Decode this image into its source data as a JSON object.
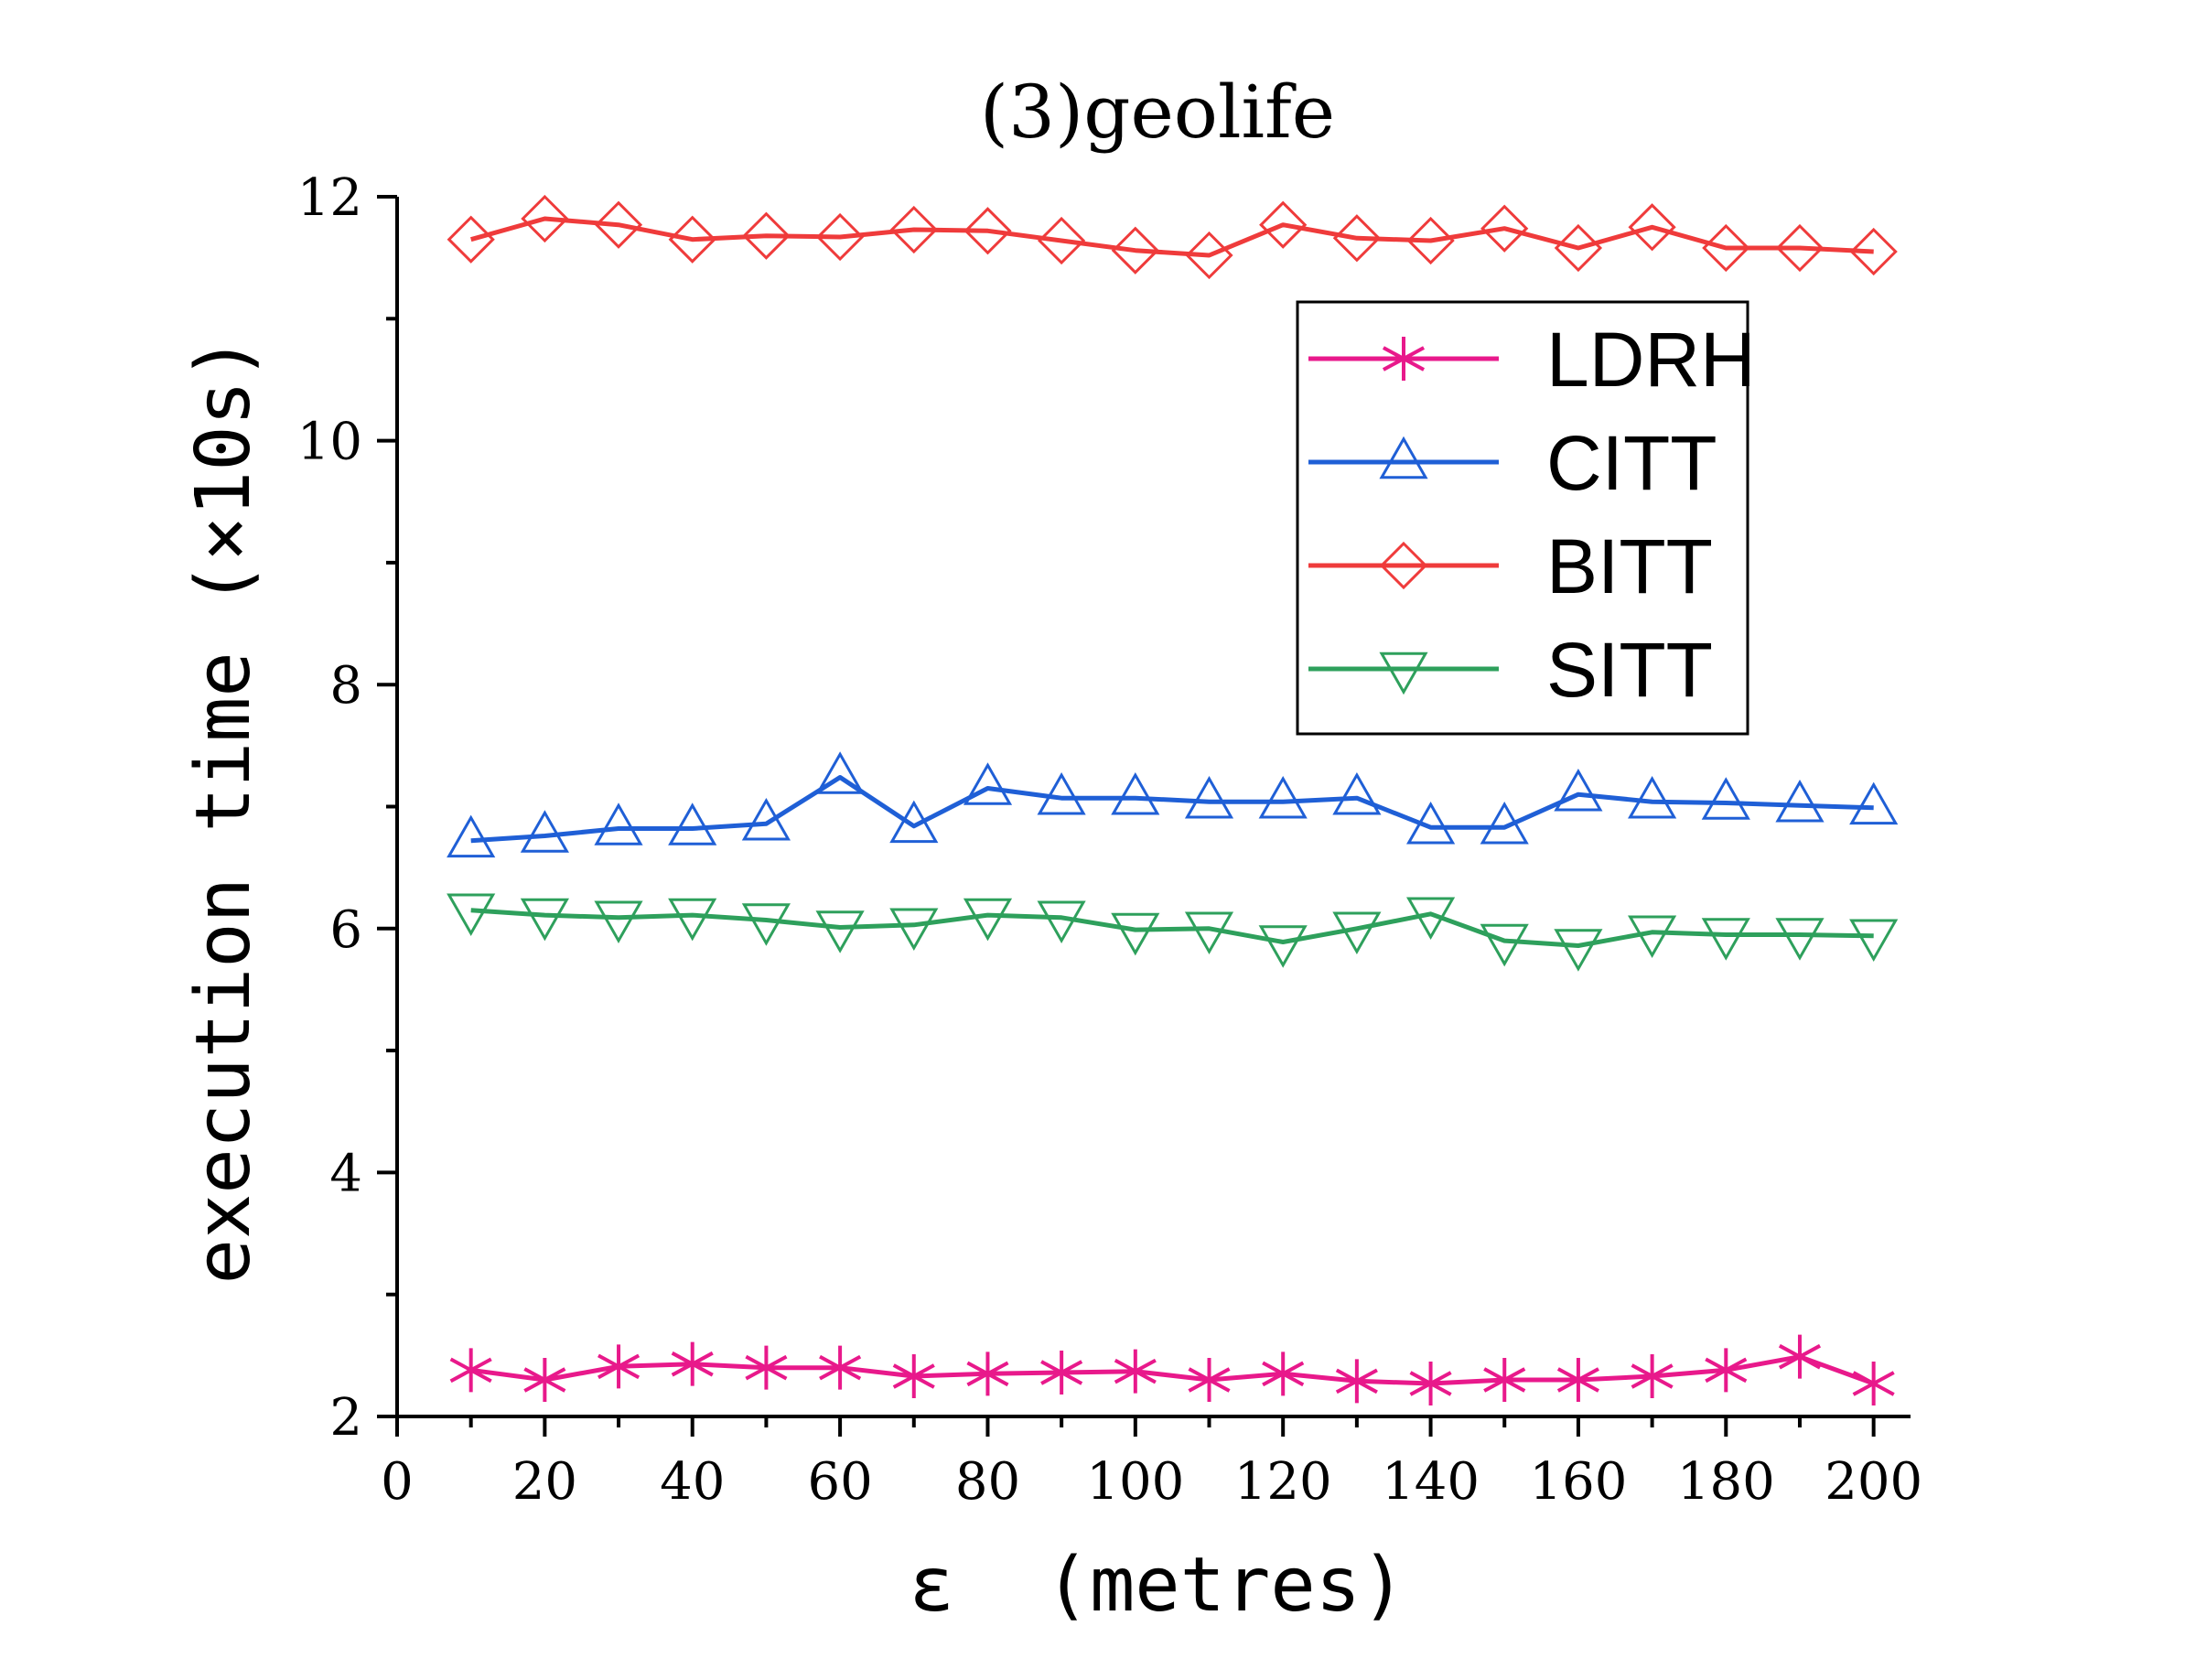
{
  "chart_data": {
    "type": "line",
    "title": "(3)geolife",
    "xlabel": "ε  (metres)",
    "ylabel": "execution time (×10s)",
    "xlim": [
      0,
      205
    ],
    "ylim": [
      2,
      12
    ],
    "xticks": [
      0,
      20,
      40,
      60,
      80,
      100,
      120,
      140,
      160,
      180,
      200
    ],
    "yticks": [
      2,
      4,
      6,
      8,
      10,
      12
    ],
    "grid": false,
    "legend_position": "top-right",
    "x": [
      10,
      20,
      30,
      40,
      50,
      60,
      70,
      80,
      90,
      100,
      110,
      120,
      130,
      140,
      150,
      160,
      170,
      180,
      190,
      200
    ],
    "series": [
      {
        "name": "LDRH",
        "color": "#E8198B",
        "marker": "star",
        "values": [
          2.38,
          2.3,
          2.41,
          2.43,
          2.4,
          2.4,
          2.33,
          2.35,
          2.36,
          2.37,
          2.3,
          2.35,
          2.29,
          2.27,
          2.3,
          2.3,
          2.33,
          2.38,
          2.49,
          2.27
        ]
      },
      {
        "name": "CITT",
        "color": "#1F5FD6",
        "marker": "triangle-up",
        "values": [
          6.72,
          6.76,
          6.82,
          6.82,
          6.86,
          7.24,
          6.84,
          7.15,
          7.07,
          7.07,
          7.04,
          7.04,
          7.07,
          6.83,
          6.83,
          7.1,
          7.04,
          7.03,
          7.01,
          6.99
        ]
      },
      {
        "name": "BITT",
        "color": "#EF3B3B",
        "marker": "diamond",
        "values": [
          11.65,
          11.82,
          11.77,
          11.65,
          11.68,
          11.67,
          11.73,
          11.72,
          11.64,
          11.56,
          11.52,
          11.77,
          11.66,
          11.64,
          11.74,
          11.58,
          11.75,
          11.58,
          11.58,
          11.55
        ]
      },
      {
        "name": "SITT",
        "color": "#2EA05C",
        "marker": "triangle-down",
        "values": [
          6.15,
          6.11,
          6.09,
          6.11,
          6.07,
          6.01,
          6.03,
          6.11,
          6.09,
          5.99,
          6.0,
          5.89,
          6.0,
          6.12,
          5.9,
          5.86,
          5.97,
          5.95,
          5.95,
          5.94
        ]
      }
    ]
  }
}
